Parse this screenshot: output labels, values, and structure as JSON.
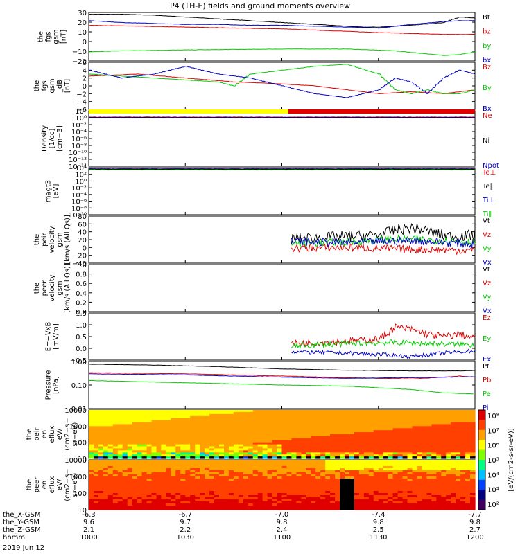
{
  "title": "P4 (TH-E) fields and ground moments overview",
  "date_label": "2019 Jun 12",
  "x_axis_rows": [
    {
      "label": "the_X-GSM",
      "values": [
        "-6.3",
        "-6.7",
        "-7.0",
        "-7.4",
        "-7.7"
      ]
    },
    {
      "label": "the_Y-GSM",
      "values": [
        "9.6",
        "9.7",
        "9.8",
        "9.8",
        "9.8"
      ]
    },
    {
      "label": "the_Z-GSM",
      "values": [
        "2.1",
        "2.2",
        "2.4",
        "2.5",
        "2.7"
      ]
    },
    {
      "label": "hhmm",
      "values": [
        "1000",
        "1030",
        "1100",
        "1130",
        "1200"
      ]
    }
  ],
  "colorbar_label": "[eV/(cm2-s-sr-eV)]",
  "colorbar_ticks": [
    "10⁸",
    "10⁷",
    "10⁶",
    "10⁵",
    "10⁴",
    "10³",
    "10²"
  ],
  "colors": {
    "black": "#000000",
    "red": "#e00000",
    "green": "#00cc00",
    "blue": "#0000cc",
    "yellow": "#ffff00"
  },
  "chart_data": [
    {
      "type": "line",
      "ylabel": "the\nfgs\ngsm\n[nT]",
      "ylim": [
        -20,
        33
      ],
      "yticks": [
        "30",
        "20",
        "10",
        "0",
        "−10",
        "−20"
      ],
      "legend": [
        "Bt",
        "bz",
        "by",
        "bx"
      ],
      "series": [
        {
          "name": "Bt",
          "color": "black",
          "x": [
            1000,
            1010,
            1020,
            1030,
            1040,
            1050,
            1100,
            1110,
            1120,
            1125,
            1130,
            1140,
            1150,
            1155,
            1200
          ],
          "y": [
            31,
            31,
            30,
            28,
            26,
            24,
            22,
            20,
            18,
            17,
            17,
            19,
            22,
            28,
            27
          ]
        },
        {
          "name": "bz",
          "color": "red",
          "x": [
            1000,
            1030,
            1100,
            1130,
            1150,
            1200
          ],
          "y": [
            19,
            17,
            15,
            11,
            9,
            9
          ]
        },
        {
          "name": "by",
          "color": "green",
          "x": [
            1000,
            1010,
            1030,
            1100,
            1120,
            1135,
            1150,
            1155,
            1200
          ],
          "y": [
            -10,
            -9,
            -8,
            -7,
            -7,
            -9,
            -14,
            -13,
            -10
          ]
        },
        {
          "name": "bx",
          "color": "blue",
          "x": [
            1000,
            1010,
            1020,
            1030,
            1040,
            1050,
            1100,
            1110,
            1120,
            1130,
            1140,
            1150,
            1155,
            1200
          ],
          "y": [
            24,
            22,
            21,
            20,
            20,
            19,
            19,
            18,
            17,
            16,
            20,
            23,
            24,
            24
          ]
        }
      ]
    },
    {
      "type": "line",
      "ylabel": "the\nfgs\ngsm\n_dB\n[nT]",
      "ylim": [
        -6,
        6
      ],
      "yticks": [
        "6",
        "4",
        "2",
        "0",
        "−2",
        "−4",
        "−6"
      ],
      "legend": [
        "Bz",
        "By",
        "Bx"
      ],
      "series": [
        {
          "name": "Bz",
          "color": "red",
          "x": [
            1000,
            1015,
            1030,
            1045,
            1100,
            1110,
            1120,
            1130,
            1140,
            1150,
            1200
          ],
          "y": [
            2.5,
            3,
            2,
            1,
            0.5,
            0,
            -1,
            -2,
            -1.5,
            -2,
            -1
          ]
        },
        {
          "name": "By",
          "color": "green",
          "x": [
            1000,
            1010,
            1020,
            1030,
            1040,
            1045,
            1050,
            1100,
            1110,
            1120,
            1130,
            1135,
            1140,
            1145,
            1150,
            1155,
            1200
          ],
          "y": [
            3,
            2.5,
            2,
            1.5,
            1,
            0,
            3,
            4,
            5,
            5.5,
            3,
            -1,
            -2,
            -1,
            -2,
            -2,
            -1
          ]
        },
        {
          "name": "Bx",
          "color": "blue",
          "x": [
            1000,
            1010,
            1020,
            1030,
            1040,
            1050,
            1100,
            1110,
            1120,
            1130,
            1135,
            1140,
            1145,
            1150,
            1155,
            1200
          ],
          "y": [
            4,
            2,
            3,
            5,
            3,
            2,
            0,
            -2,
            -3,
            -1,
            2,
            1,
            -2,
            2,
            4,
            3
          ]
        }
      ]
    },
    {
      "type": "line",
      "ylabel": "Density\n[1/cc]\n[cm−3]",
      "ylim": [
        -14,
        2
      ],
      "log": true,
      "yticks": [
        "10²",
        "10⁰",
        "10⁻²",
        "10⁻⁴",
        "10⁻⁶",
        "10⁻⁸",
        "10⁻¹⁰",
        "10⁻¹²",
        "10⁻¹⁴"
      ],
      "legend": [
        "Ne",
        "Ni",
        "Npot"
      ],
      "mode_bar": [
        {
          "x0": 1000,
          "x1": 1102,
          "color": "yellow"
        },
        {
          "x0": 1102,
          "x1": 1200,
          "color": "red"
        }
      ],
      "series": [
        {
          "name": "Ne",
          "color": "red",
          "x": [
            1000,
            1200
          ],
          "y": [
            0.2,
            0.2
          ]
        },
        {
          "name": "Ni",
          "color": "black",
          "x": [
            1000,
            1200
          ],
          "y": [
            0.1,
            0.1
          ]
        },
        {
          "name": "Npot",
          "color": "blue",
          "x": [
            1000,
            1200
          ],
          "y": [
            0,
            0
          ]
        }
      ]
    },
    {
      "type": "line",
      "ylabel": "magt3\n[eV]",
      "ylim": [
        -10,
        4
      ],
      "log": true,
      "yticks": [
        "10⁴",
        "10²",
        "10⁰",
        "10⁻²",
        "10⁻⁴",
        "10⁻⁶",
        "10⁻⁸",
        "10⁻¹⁰"
      ],
      "legend": [
        "Te⊥",
        "Te∥",
        "Ti⊥",
        "Ti∥"
      ],
      "series": [
        {
          "name": "Te⊥",
          "color": "red",
          "x": [
            1000,
            1200
          ],
          "y": [
            3.6,
            3.6
          ]
        },
        {
          "name": "Te∥",
          "color": "black",
          "x": [
            1000,
            1200
          ],
          "y": [
            3.5,
            3.5
          ]
        },
        {
          "name": "Ti⊥",
          "color": "blue",
          "x": [
            1000,
            1200
          ],
          "y": [
            3.8,
            3.8
          ]
        },
        {
          "name": "Ti∥",
          "color": "green",
          "x": [
            1000,
            1200
          ],
          "y": [
            3.3,
            3.3
          ]
        }
      ]
    },
    {
      "type": "line",
      "ylabel": "the\npeir\nvelocity\ngsm\n[km/s (All Qs)]",
      "ylim": [
        -40,
        80
      ],
      "yticks": [
        "80",
        "60",
        "40",
        "20",
        "0",
        "−20",
        "−40"
      ],
      "legend": [
        "Vt",
        "Vz",
        "Vy",
        "Vx"
      ],
      "series": [
        {
          "name": "Vt",
          "color": "black",
          "noise": 14,
          "x": [
            1103,
            1110,
            1120,
            1130,
            1135,
            1140,
            1145,
            1150,
            1155,
            1200
          ],
          "y": [
            22,
            25,
            28,
            32,
            45,
            50,
            42,
            30,
            28,
            32
          ]
        },
        {
          "name": "Vz",
          "color": "red",
          "noise": 10,
          "x": [
            1103,
            1120,
            1140,
            1160,
            1200
          ],
          "y": [
            -2,
            0,
            -5,
            -8,
            -8
          ]
        },
        {
          "name": "Vy",
          "color": "green",
          "noise": 10,
          "x": [
            1103,
            1120,
            1135,
            1150,
            1200
          ],
          "y": [
            10,
            14,
            22,
            18,
            14
          ]
        },
        {
          "name": "Vx",
          "color": "blue",
          "noise": 10,
          "x": [
            1103,
            1120,
            1140,
            1160,
            1200
          ],
          "y": [
            15,
            12,
            18,
            8,
            10
          ]
        }
      ]
    },
    {
      "type": "line",
      "ylabel": "the\npeer\nvelocity\ngsm\n[km/s (All Qs)]",
      "ylim": [
        0,
        1
      ],
      "yticks": [
        "1.0",
        "0.8",
        "0.6",
        "0.4",
        "0.2",
        "0.0"
      ],
      "legend": [
        "Vt",
        "Vz",
        "Vy",
        "Vx"
      ],
      "series": []
    },
    {
      "type": "line",
      "ylabel": "E=−VxB\n[mV/m]",
      "ylim": [
        -0.5,
        1.5
      ],
      "yticks": [
        "1.5",
        "1.0",
        "0.5",
        "0.0",
        "−0.5"
      ],
      "legend": [
        "Ez",
        "Ey",
        "Ex"
      ],
      "series": [
        {
          "name": "Ez",
          "color": "red",
          "noise": 0.15,
          "x": [
            1103,
            1120,
            1130,
            1135,
            1140,
            1145,
            1150,
            1155,
            1200
          ],
          "y": [
            0.2,
            0.3,
            0.4,
            0.9,
            0.8,
            0.6,
            0.5,
            0.6,
            0.4
          ]
        },
        {
          "name": "Ey",
          "color": "green",
          "noise": 0.12,
          "x": [
            1103,
            1120,
            1135,
            1145,
            1160,
            1200
          ],
          "y": [
            0.1,
            0.2,
            0.25,
            0.2,
            0.15,
            0.15
          ]
        },
        {
          "name": "Ex",
          "color": "blue",
          "noise": 0.08,
          "x": [
            1103,
            1120,
            1135,
            1140,
            1150,
            1200
          ],
          "y": [
            -0.15,
            -0.2,
            -0.3,
            -0.35,
            -0.2,
            -0.1
          ]
        }
      ]
    },
    {
      "type": "line",
      "ylabel": "Pressure\n[nPa]",
      "ylim": [
        -2,
        0.1
      ],
      "log": true,
      "yticks": [
        "1.00",
        "0.10",
        "0.01"
      ],
      "legend": [
        "Pt",
        "Pb",
        "Pe",
        "Pi"
      ],
      "series": [
        {
          "name": "Pt",
          "color": "black",
          "x": [
            1000,
            1020,
            1040,
            1100,
            1120,
            1140,
            1155,
            1200
          ],
          "y": [
            -0.02,
            -0.06,
            -0.13,
            -0.23,
            -0.29,
            -0.32,
            -0.32,
            -0.3
          ]
        },
        {
          "name": "Pb",
          "color": "red",
          "x": [
            1000,
            1030,
            1100,
            1120,
            1140,
            1150,
            1155,
            1200
          ],
          "y": [
            -0.4,
            -0.45,
            -0.55,
            -0.62,
            -0.68,
            -0.6,
            -0.55,
            -0.6
          ]
        },
        {
          "name": "Pe",
          "color": "green",
          "x": [
            1000,
            1030,
            1100,
            1120,
            1140,
            1150,
            1160,
            1200
          ],
          "y": [
            -0.75,
            -0.85,
            -0.95,
            -1.0,
            -1.15,
            -1.3,
            -1.35,
            -1.25
          ]
        },
        {
          "name": "Pi",
          "color": "blue",
          "x": [
            1000,
            1030,
            1100,
            1120,
            1140,
            1200
          ],
          "y": [
            -0.45,
            -0.5,
            -0.6,
            -0.65,
            -0.62,
            -0.58
          ]
        }
      ]
    },
    {
      "type": "heatmap",
      "ylabel": "the\npeir\nen\neflux\neV/\n(cm2−s−\nsr−eV)",
      "yticks": [
        "10000",
        "1000",
        "100",
        "10"
      ],
      "ylim": [
        0.6,
        4.3
      ]
    },
    {
      "type": "heatmap",
      "ylabel": "the\npeer\nen\neflux\neV/\n(cm2−s−\nsr−eV)",
      "yticks": [
        "10000",
        "1000",
        "100",
        "10"
      ],
      "ylim": [
        0.6,
        4.3
      ]
    }
  ]
}
